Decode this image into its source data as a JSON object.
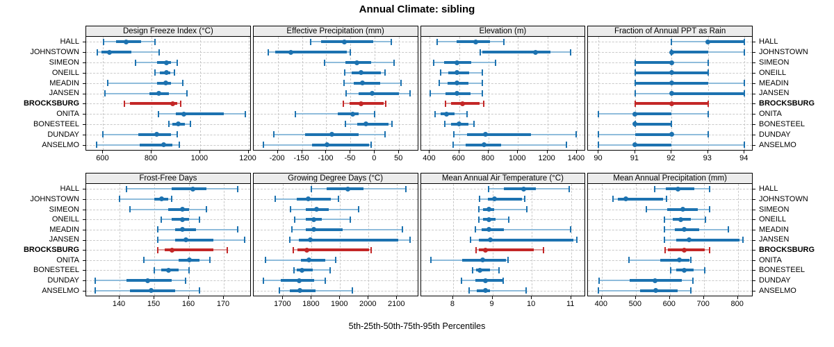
{
  "title": "Annual Climate: sibling",
  "caption": "5th-25th-50th-75th-95th Percentiles",
  "locations": [
    "HALL",
    "JOHNSTOWN",
    "SIMEON",
    "ONEILL",
    "MEADIN",
    "JANSEN",
    "BROCKSBURG",
    "ONITA",
    "BONESTEEL",
    "DUNDAY",
    "ANSELMO"
  ],
  "highlight_location": "BROCKSBURG",
  "colors": {
    "series_blue": "#1c72b0",
    "series_blue_light": "#8fbcdb",
    "highlight_red": "#c32727",
    "highlight_red_light": "#dd9a9a",
    "strip_bg": "#ececec",
    "grid": "#c9c9c9",
    "border": "#000000"
  },
  "chart_data": [
    {
      "type": "dotplot-interval",
      "panel": "Design Freeze Index (°C)",
      "row": "top",
      "percentiles": [
        5,
        25,
        50,
        75,
        95
      ],
      "xlim": [
        530,
        1207
      ],
      "ticks": [
        600,
        800,
        1000,
        1200
      ],
      "tick_labels": [
        "600",
        "800",
        "1000",
        "1200"
      ],
      "values": [
        [
          602,
          654,
          695,
          757,
          815
        ],
        [
          576,
          592,
          626,
          717,
          830
        ],
        [
          735,
          822,
          860,
          880,
          906
        ],
        [
          815,
          835,
          860,
          876,
          895
        ],
        [
          618,
          822,
          858,
          880,
          928
        ],
        [
          607,
          790,
          831,
          870,
          947
        ],
        [
          689,
          712,
          888,
          906,
          920
        ],
        [
          828,
          901,
          933,
          1099,
          1186
        ],
        [
          872,
          886,
          909,
          938,
          961
        ],
        [
          600,
          745,
          821,
          880,
          906
        ],
        [
          573,
          752,
          851,
          886,
          913
        ]
      ]
    },
    {
      "type": "dotplot-interval",
      "panel": "Effective Precipitation (mm)",
      "row": "top",
      "percentiles": [
        5,
        25,
        50,
        75,
        95
      ],
      "xlim": [
        -250,
        88
      ],
      "ticks": [
        -200,
        -150,
        -100,
        -50,
        0,
        50
      ],
      "tick_labels": [
        "-200",
        "-150",
        "-100",
        "-50",
        "0",
        "50"
      ],
      "values": [
        [
          -132,
          -111,
          -63,
          -3,
          34
        ],
        [
          -219,
          -205,
          -173,
          -57,
          -50
        ],
        [
          -103,
          -60,
          -37,
          -7,
          40
        ],
        [
          -62,
          -47,
          -29,
          12,
          21
        ],
        [
          -64,
          -44,
          -26,
          11,
          54
        ],
        [
          -59,
          -33,
          -5,
          50,
          73
        ],
        [
          -65,
          -52,
          -29,
          18,
          22
        ],
        [
          -164,
          -76,
          -45,
          -33,
          0
        ],
        [
          -60,
          -36,
          -18,
          28,
          36
        ],
        [
          -208,
          -144,
          -88,
          -33,
          21
        ],
        [
          -229,
          -130,
          -99,
          -12,
          -7
        ]
      ]
    },
    {
      "type": "dotplot-interval",
      "panel": "Elevation (m)",
      "row": "top",
      "percentiles": [
        5,
        25,
        50,
        75,
        95
      ],
      "xlim": [
        339,
        1455
      ],
      "ticks": [
        400,
        600,
        800,
        1000,
        1200,
        1400
      ],
      "tick_labels": [
        "400",
        "600",
        "800",
        "1000",
        "1200",
        "1400"
      ],
      "values": [
        [
          450,
          583,
          712,
          809,
          903
        ],
        [
          743,
          756,
          1118,
          1222,
          1360
        ],
        [
          427,
          497,
          587,
          684,
          848
        ],
        [
          473,
          528,
          583,
          668,
          759
        ],
        [
          462,
          520,
          583,
          661,
          759
        ],
        [
          403,
          505,
          587,
          677,
          759
        ],
        [
          509,
          545,
          622,
          739,
          766
        ],
        [
          434,
          473,
          516,
          567,
          653
        ],
        [
          500,
          544,
          598,
          661,
          700
        ],
        [
          564,
          653,
          778,
          1090,
          1395
        ],
        [
          559,
          645,
          767,
          887,
          1330
        ]
      ]
    },
    {
      "type": "dotplot-interval",
      "panel": "Fraction of Annual PPT as Rain",
      "row": "top",
      "percentiles": [
        5,
        25,
        50,
        75,
        95
      ],
      "xlim": [
        89.71,
        94.21
      ],
      "ticks": [
        90,
        91,
        92,
        93,
        94
      ],
      "tick_labels": [
        "90",
        "91",
        "92",
        "93",
        "94"
      ],
      "values": [
        [
          92,
          93,
          93,
          94,
          94
        ],
        [
          92,
          92,
          92,
          93,
          94
        ],
        [
          91,
          91,
          92,
          92,
          93
        ],
        [
          91,
          91,
          92,
          93,
          93
        ],
        [
          91,
          91,
          92,
          93,
          94
        ],
        [
          91,
          92,
          92,
          94,
          94
        ],
        [
          91,
          91,
          92,
          93,
          93
        ],
        [
          90,
          91,
          91,
          92,
          93
        ],
        [
          91,
          91,
          91,
          92,
          92
        ],
        [
          90,
          91,
          92,
          92,
          93
        ],
        [
          90,
          91,
          91,
          92,
          94
        ]
      ]
    },
    {
      "type": "dotplot-interval",
      "panel": "Frost-Free Days",
      "row": "bottom",
      "percentiles": [
        5,
        25,
        50,
        75,
        95
      ],
      "xlim": [
        130.4,
        177.6
      ],
      "ticks": [
        140,
        150,
        160,
        170
      ],
      "tick_labels": [
        "140",
        "150",
        "160",
        "170"
      ],
      "values": [
        [
          142,
          155,
          161,
          165,
          174
        ],
        [
          140,
          150,
          152,
          154,
          155
        ],
        [
          143,
          154,
          158,
          160,
          165
        ],
        [
          152,
          155,
          158,
          160,
          163
        ],
        [
          151,
          156,
          158,
          162,
          174
        ],
        [
          151,
          156,
          159,
          167,
          176
        ],
        [
          151,
          153,
          155,
          167,
          171
        ],
        [
          147,
          157,
          160,
          163,
          166
        ],
        [
          150,
          152,
          154,
          157,
          160
        ],
        [
          133,
          142,
          148,
          155,
          159
        ],
        [
          133,
          143,
          149,
          156,
          163
        ]
      ]
    },
    {
      "type": "dotplot-interval",
      "panel": "Growing Degree Days (°C)",
      "row": "bottom",
      "percentiles": [
        5,
        25,
        50,
        75,
        95
      ],
      "xlim": [
        1596,
        2172
      ],
      "ticks": [
        1700,
        1800,
        1900,
        2000,
        2100
      ],
      "tick_labels": [
        "1700",
        "1800",
        "1900",
        "2000",
        "2100"
      ],
      "values": [
        [
          1800,
          1852,
          1927,
          1982,
          2130
        ],
        [
          1672,
          1747,
          1787,
          1868,
          1895
        ],
        [
          1725,
          1780,
          1817,
          1860,
          1965
        ],
        [
          1741,
          1779,
          1808,
          1836,
          1935
        ],
        [
          1731,
          1779,
          1808,
          1909,
          2119
        ],
        [
          1723,
          1755,
          1795,
          2105,
          2145
        ],
        [
          1735,
          1751,
          1783,
          2002,
          2008
        ],
        [
          1639,
          1763,
          1790,
          1848,
          1884
        ],
        [
          1737,
          1747,
          1766,
          1803,
          1864
        ],
        [
          1631,
          1693,
          1757,
          1808,
          1848
        ],
        [
          1686,
          1723,
          1759,
          1814,
          1943
        ]
      ]
    },
    {
      "type": "dotplot-interval",
      "panel": "Mean Annual Air Temperature (°C)",
      "row": "bottom",
      "percentiles": [
        5,
        25,
        50,
        75,
        95
      ],
      "xlim": [
        7.18,
        11.35
      ],
      "ticks": [
        8,
        9,
        10,
        11
      ],
      "tick_labels": [
        "8",
        "9",
        "10",
        "11"
      ],
      "values": [
        [
          8.9,
          9.3,
          9.8,
          10.1,
          10.95
        ],
        [
          8.67,
          8.88,
          9.06,
          9.75,
          9.82
        ],
        [
          8.65,
          8.76,
          8.91,
          9.05,
          9.87
        ],
        [
          8.65,
          8.76,
          8.91,
          9.08,
          9.42
        ],
        [
          8.57,
          8.73,
          8.91,
          9.29,
          10.98
        ],
        [
          8.44,
          8.65,
          8.95,
          11.05,
          11.15
        ],
        [
          8.58,
          8.65,
          8.82,
          10.05,
          10.3
        ],
        [
          7.44,
          8.23,
          8.75,
          9.35,
          9.4
        ],
        [
          8.5,
          8.58,
          8.69,
          8.94,
          9.16
        ],
        [
          8.21,
          8.56,
          8.82,
          9.26,
          9.28
        ],
        [
          8.4,
          8.61,
          8.82,
          8.94,
          9.86
        ]
      ]
    },
    {
      "type": "dotplot-interval",
      "panel": "Mean Annual Precipitation (mm)",
      "row": "bottom",
      "percentiles": [
        5,
        25,
        50,
        75,
        95
      ],
      "xlim": [
        360,
        842
      ],
      "ticks": [
        400,
        500,
        600,
        700,
        800
      ],
      "tick_labels": [
        "400",
        "500",
        "600",
        "700",
        "800"
      ],
      "values": [
        [
          555,
          589,
          624,
          672,
          716
        ],
        [
          433,
          448,
          470,
          580,
          590
        ],
        [
          532,
          592,
          639,
          682,
          716
        ],
        [
          585,
          609,
          632,
          662,
          704
        ],
        [
          585,
          615,
          642,
          686,
          773
        ],
        [
          584,
          619,
          657,
          805,
          815
        ],
        [
          587,
          595,
          642,
          702,
          716
        ],
        [
          480,
          572,
          628,
          658,
          662
        ],
        [
          602,
          619,
          642,
          669,
          702
        ],
        [
          393,
          482,
          557,
          636,
          668
        ],
        [
          391,
          512,
          559,
          622,
          661
        ]
      ]
    }
  ]
}
